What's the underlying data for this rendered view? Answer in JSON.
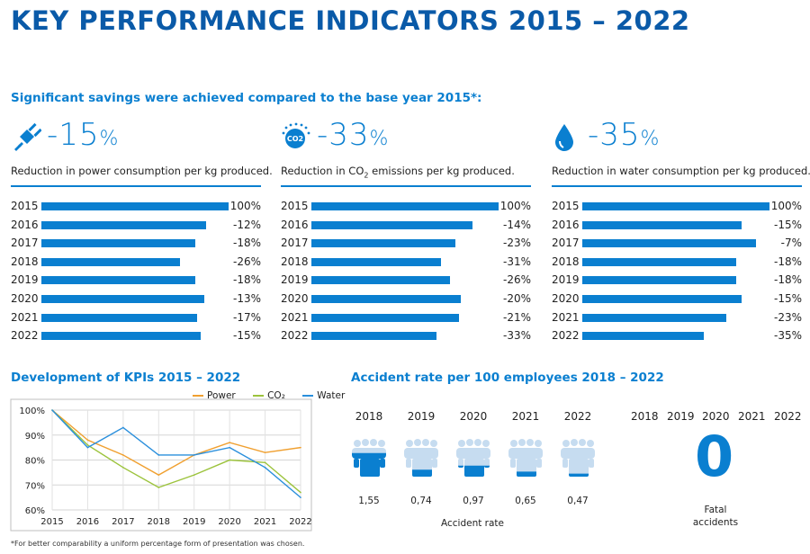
{
  "title": "KEY PERFORMANCE INDICATORS 2015 – 2022",
  "subtitle": "Significant savings were achieved compared to the base year 2015*:",
  "kpis": [
    {
      "icon": "power-plug-icon",
      "big_value": "-15",
      "big_unit": "%",
      "description": "Reduction in power consumption per kg produced.",
      "rows": [
        {
          "year": "2015",
          "label": "100%",
          "value": 100
        },
        {
          "year": "2016",
          "label": "-12%",
          "value": 88
        },
        {
          "year": "2017",
          "label": "-18%",
          "value": 82
        },
        {
          "year": "2018",
          "label": "-26%",
          "value": 74
        },
        {
          "year": "2019",
          "label": "-18%",
          "value": 82
        },
        {
          "year": "2020",
          "label": "-13%",
          "value": 87
        },
        {
          "year": "2021",
          "label": "-17%",
          "value": 83
        },
        {
          "year": "2022",
          "label": "-15%",
          "value": 85
        }
      ]
    },
    {
      "icon": "co2-cloud-icon",
      "icon_text": "CO2",
      "big_value": "-33",
      "big_unit": "%",
      "description_pre": "Reduction in CO",
      "description_sub": "2",
      "description_post": " emissions per kg produced.",
      "rows": [
        {
          "year": "2015",
          "label": "100%",
          "value": 100
        },
        {
          "year": "2016",
          "label": "-14%",
          "value": 86
        },
        {
          "year": "2017",
          "label": "-23%",
          "value": 77
        },
        {
          "year": "2018",
          "label": "-31%",
          "value": 69
        },
        {
          "year": "2019",
          "label": "-26%",
          "value": 74
        },
        {
          "year": "2020",
          "label": "-20%",
          "value": 80
        },
        {
          "year": "2021",
          "label": "-21%",
          "value": 79
        },
        {
          "year": "2022",
          "label": "-33%",
          "value": 67
        }
      ]
    },
    {
      "icon": "water-drop-icon",
      "big_value": "-35",
      "big_unit": "%",
      "description": "Reduction in water consumption per kg produced.",
      "rows": [
        {
          "year": "2015",
          "label": "100%",
          "value": 100
        },
        {
          "year": "2016",
          "label": "-15%",
          "value": 85
        },
        {
          "year": "2017",
          "label": "-7%",
          "value": 93
        },
        {
          "year": "2018",
          "label": "-18%",
          "value": 82
        },
        {
          "year": "2019",
          "label": "-18%",
          "value": 82
        },
        {
          "year": "2020",
          "label": "-15%",
          "value": 85
        },
        {
          "year": "2021",
          "label": "-23%",
          "value": 77
        },
        {
          "year": "2022",
          "label": "-35%",
          "value": 65
        }
      ]
    }
  ],
  "chart_data": {
    "type": "line",
    "title": "Development of KPIs 2015 – 2022",
    "xlabel": "",
    "ylabel": "",
    "x": [
      "2015",
      "2016",
      "2017",
      "2018",
      "2019",
      "2020",
      "2021",
      "2022"
    ],
    "ylim": [
      60,
      100
    ],
    "yticks": [
      "60%",
      "70%",
      "80%",
      "90%",
      "100%"
    ],
    "ytick_values": [
      60,
      70,
      80,
      90,
      100
    ],
    "grid": true,
    "legend_position": "top-right",
    "series": [
      {
        "name": "Power",
        "color": "#f0a030",
        "values": [
          100,
          88,
          82,
          74,
          82,
          87,
          83,
          85
        ]
      },
      {
        "name": "CO₂",
        "color": "#9cc33c",
        "values": [
          100,
          86,
          77,
          69,
          74,
          80,
          79,
          67
        ]
      },
      {
        "name": "Water",
        "color": "#2a8fdc",
        "values": [
          100,
          85,
          93,
          82,
          82,
          85,
          77,
          65
        ]
      }
    ]
  },
  "accidents": {
    "title": "Accident rate per 100 employees 2018 – 2022",
    "years": [
      "2018",
      "2019",
      "2020",
      "2021",
      "2022"
    ],
    "values": [
      "1,55",
      "0,74",
      "0,97",
      "0,65",
      "0,47"
    ],
    "fill_fractions": [
      0.62,
      0.2,
      0.3,
      0.15,
      0.1
    ],
    "label": "Accident rate",
    "fatal_years": [
      "2018",
      "2019",
      "2020",
      "2021",
      "2022"
    ],
    "fatal_value": "0",
    "fatal_label_line1": "Fatal",
    "fatal_label_line2": "accidents"
  },
  "colors": {
    "accent": "#0a7fd0",
    "title": "#0a5aa8",
    "light_icon": "#c6dcf0"
  },
  "footnote": "*For better comparability a uniform percentage form of presentation was chosen."
}
